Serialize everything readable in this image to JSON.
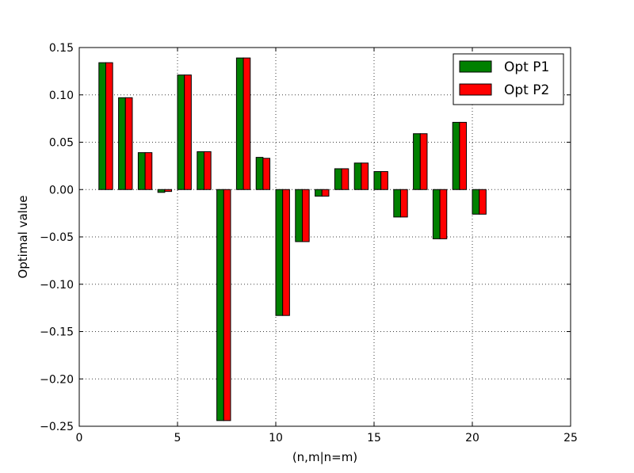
{
  "chart_data": {
    "type": "bar",
    "title": "",
    "xlabel": "(n,m|n=m)",
    "ylabel": "Optimal value",
    "xlim": [
      0,
      25
    ],
    "ylim": [
      -0.25,
      0.15
    ],
    "xticks": [
      0,
      5,
      10,
      15,
      20,
      25
    ],
    "xtick_labels": [
      "0",
      "5",
      "10",
      "15",
      "20",
      "25"
    ],
    "yticks": [
      -0.25,
      -0.2,
      -0.15,
      -0.1,
      -0.05,
      0.0,
      0.05,
      0.1,
      0.15
    ],
    "ytick_labels": [
      "−0.25",
      "−0.20",
      "−0.15",
      "−0.10",
      "−0.05",
      "0.00",
      "0.05",
      "0.10",
      "0.15"
    ],
    "grid": true,
    "legend_position": "top-right",
    "x": [
      1,
      2,
      3,
      4,
      5,
      6,
      7,
      8,
      9,
      10,
      11,
      12,
      13,
      14,
      15,
      16,
      17,
      18,
      19,
      20
    ],
    "series": [
      {
        "name": "Opt P1",
        "color": "#008000",
        "values": [
          0.134,
          0.097,
          0.039,
          -0.003,
          0.121,
          0.04,
          -0.244,
          0.139,
          0.034,
          -0.133,
          -0.055,
          -0.007,
          0.022,
          0.028,
          0.019,
          -0.029,
          0.059,
          -0.052,
          0.071,
          -0.026
        ]
      },
      {
        "name": "Opt P2",
        "color": "#ff0000",
        "values": [
          0.134,
          0.097,
          0.039,
          -0.002,
          0.121,
          0.04,
          -0.244,
          0.139,
          0.033,
          -0.133,
          -0.055,
          -0.007,
          0.022,
          0.028,
          0.019,
          -0.029,
          0.059,
          -0.052,
          0.071,
          -0.026
        ]
      }
    ]
  }
}
